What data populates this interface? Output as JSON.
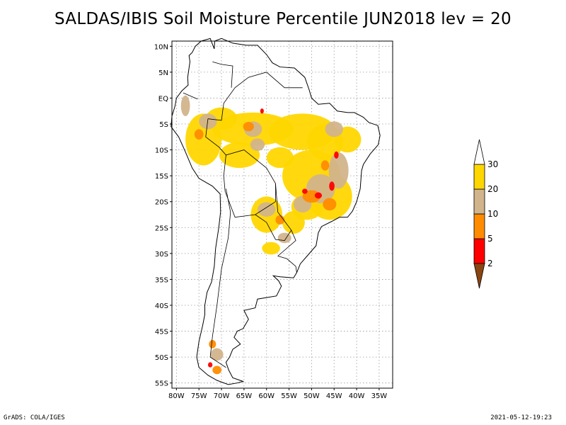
{
  "title": "SALDAS/IBIS Soil Moisture Percentile JUN2018 lev = 20",
  "footer": {
    "software": "GrADS: COLA/IGES",
    "timestamp": "2021-05-12-19:23"
  },
  "map": {
    "region": "South America",
    "lon_range": [
      -81,
      -32
    ],
    "lat_range": [
      -56,
      11
    ],
    "grid": "dotted",
    "lon_ticks": [
      "80W",
      "75W",
      "70W",
      "65W",
      "60W",
      "55W",
      "50W",
      "45W",
      "40W",
      "35W"
    ],
    "lat_ticks": [
      "10N",
      "5N",
      "EQ",
      "5S",
      "10S",
      "15S",
      "20S",
      "25S",
      "30S",
      "35S",
      "40S",
      "45S",
      "50S",
      "55S"
    ]
  },
  "legend": {
    "type": "colorbar",
    "placement": "right",
    "levels": [
      "2",
      "5",
      "10",
      "20",
      "30"
    ],
    "colors": {
      "below_2": "#8b4513",
      "2_5": "#ff0000",
      "5_10": "#ff8c00",
      "10_20": "#d2b48c",
      "20_30": "#ffd700",
      "above_30": "#ffffff"
    }
  }
}
